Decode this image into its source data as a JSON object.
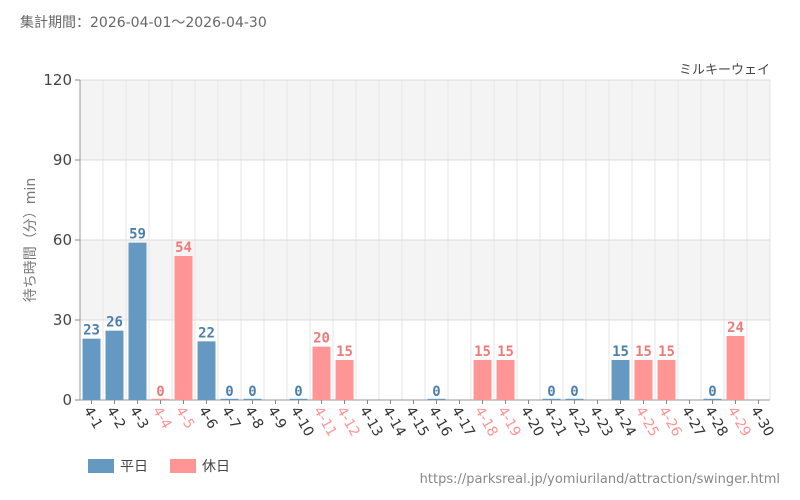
{
  "header": {
    "period": "集計期間：2026-04-01～2026-04-30"
  },
  "source_url": "https://parksreal.jp/yomiuriland/attraction/swinger.html",
  "colors": {
    "weekday": "#6699c2",
    "holiday": "#ff9595",
    "weekday_label": "#4a7fae",
    "holiday_label": "#ef7a7a"
  },
  "chart_data": {
    "type": "bar",
    "title": "ミルキーウェイ",
    "ylabel": "待ち時間（分）min",
    "xlabel": "",
    "ylim": [
      0,
      120
    ],
    "yticks": [
      0,
      30,
      60,
      90,
      120
    ],
    "grid": true,
    "legend_position": "bottom-left",
    "categories": [
      "4-1",
      "4-2",
      "4-3",
      "4-4",
      "4-5",
      "4-6",
      "4-7",
      "4-8",
      "4-9",
      "4-10",
      "4-11",
      "4-12",
      "4-13",
      "4-14",
      "4-15",
      "4-16",
      "4-17",
      "4-18",
      "4-19",
      "4-20",
      "4-21",
      "4-22",
      "4-23",
      "4-24",
      "4-25",
      "4-26",
      "4-27",
      "4-28",
      "4-29",
      "4-30"
    ],
    "day_type": [
      "weekday",
      "weekday",
      "weekday",
      "holiday",
      "holiday",
      "weekday",
      "weekday",
      "weekday",
      "weekday",
      "weekday",
      "holiday",
      "holiday",
      "weekday",
      "weekday",
      "weekday",
      "weekday",
      "weekday",
      "holiday",
      "holiday",
      "weekday",
      "weekday",
      "weekday",
      "weekday",
      "weekday",
      "holiday",
      "holiday",
      "weekday",
      "weekday",
      "holiday",
      "weekday"
    ],
    "values": [
      23,
      26,
      59,
      0,
      54,
      22,
      0,
      0,
      null,
      0,
      20,
      15,
      null,
      null,
      null,
      0,
      null,
      15,
      15,
      null,
      0,
      0,
      null,
      15,
      15,
      15,
      null,
      0,
      24,
      null
    ],
    "series": [
      {
        "name": "平日",
        "key": "weekday"
      },
      {
        "name": "休日",
        "key": "holiday"
      }
    ]
  }
}
